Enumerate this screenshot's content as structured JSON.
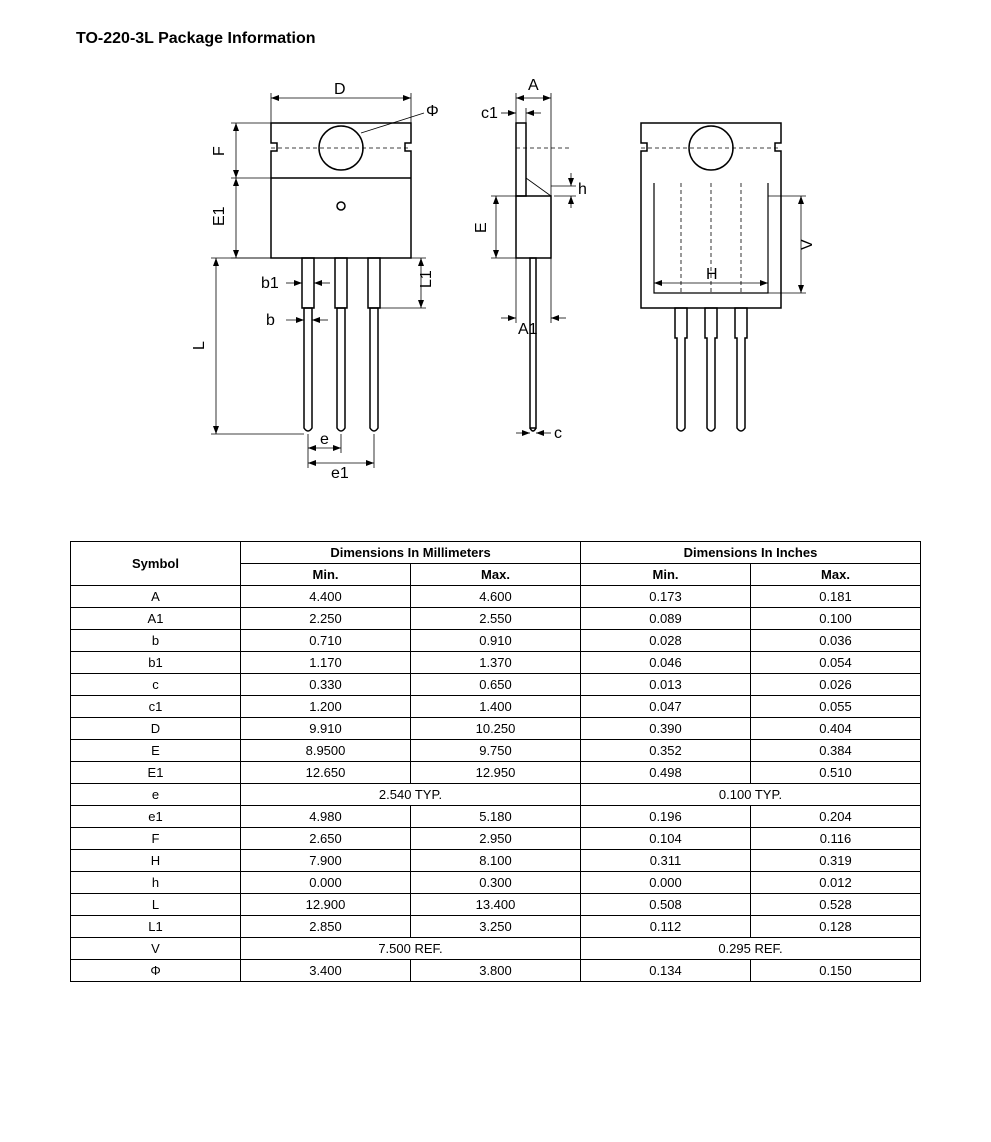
{
  "title": "TO-220-3L Package Information",
  "table": {
    "header": {
      "symbol": "Symbol",
      "mm": "Dimensions In Millimeters",
      "in": "Dimensions In Inches",
      "min": "Min.",
      "max": "Max."
    },
    "rows": [
      {
        "sym": "A",
        "mmMin": "4.400",
        "mmMax": "4.600",
        "inMin": "0.173",
        "inMax": "0.181"
      },
      {
        "sym": "A1",
        "mmMin": "2.250",
        "mmMax": "2.550",
        "inMin": "0.089",
        "inMax": "0.100"
      },
      {
        "sym": "b",
        "mmMin": "0.710",
        "mmMax": "0.910",
        "inMin": "0.028",
        "inMax": "0.036"
      },
      {
        "sym": "b1",
        "mmMin": "1.170",
        "mmMax": "1.370",
        "inMin": "0.046",
        "inMax": "0.054"
      },
      {
        "sym": "c",
        "mmMin": "0.330",
        "mmMax": "0.650",
        "inMin": "0.013",
        "inMax": "0.026"
      },
      {
        "sym": "c1",
        "mmMin": "1.200",
        "mmMax": "1.400",
        "inMin": "0.047",
        "inMax": "0.055"
      },
      {
        "sym": "D",
        "mmMin": "9.910",
        "mmMax": "10.250",
        "inMin": "0.390",
        "inMax": "0.404"
      },
      {
        "sym": "E",
        "mmMin": "8.9500",
        "mmMax": "9.750",
        "inMin": "0.352",
        "inMax": "0.384"
      },
      {
        "sym": "E1",
        "mmMin": "12.650",
        "mmMax": "12.950",
        "inMin": "0.498",
        "inMax": "0.510"
      },
      {
        "sym": "e",
        "mmSpan": "2.540 TYP.",
        "inSpan": "0.100 TYP."
      },
      {
        "sym": "e1",
        "mmMin": "4.980",
        "mmMax": "5.180",
        "inMin": "0.196",
        "inMax": "0.204"
      },
      {
        "sym": "F",
        "mmMin": "2.650",
        "mmMax": "2.950",
        "inMin": "0.104",
        "inMax": "0.116"
      },
      {
        "sym": "H",
        "mmMin": "7.900",
        "mmMax": "8.100",
        "inMin": "0.311",
        "inMax": "0.319"
      },
      {
        "sym": "h",
        "mmMin": "0.000",
        "mmMax": "0.300",
        "inMin": "0.000",
        "inMax": "0.012"
      },
      {
        "sym": "L",
        "mmMin": "12.900",
        "mmMax": "13.400",
        "inMin": "0.508",
        "inMax": "0.528"
      },
      {
        "sym": "L1",
        "mmMin": "2.850",
        "mmMax": "3.250",
        "inMin": "0.112",
        "inMax": "0.128"
      },
      {
        "sym": "V",
        "mmSpan": "7.500 REF.",
        "inSpan": "0.295 REF."
      },
      {
        "sym": "Φ",
        "mmMin": "3.400",
        "mmMax": "3.800",
        "inMin": "0.134",
        "inMax": "0.150"
      }
    ]
  },
  "diagram": {
    "labels": [
      "D",
      "Φ",
      "F",
      "E1",
      "b1",
      "b",
      "L",
      "L1",
      "e",
      "e1",
      "A",
      "c1",
      "h",
      "E",
      "A1",
      "c",
      "H",
      "V"
    ],
    "stroke": "#000000",
    "strokeWidth": 1.5,
    "thinStroke": 0.8,
    "dash": "4 3",
    "fontSize": 16,
    "fontFamily": "Arial"
  }
}
